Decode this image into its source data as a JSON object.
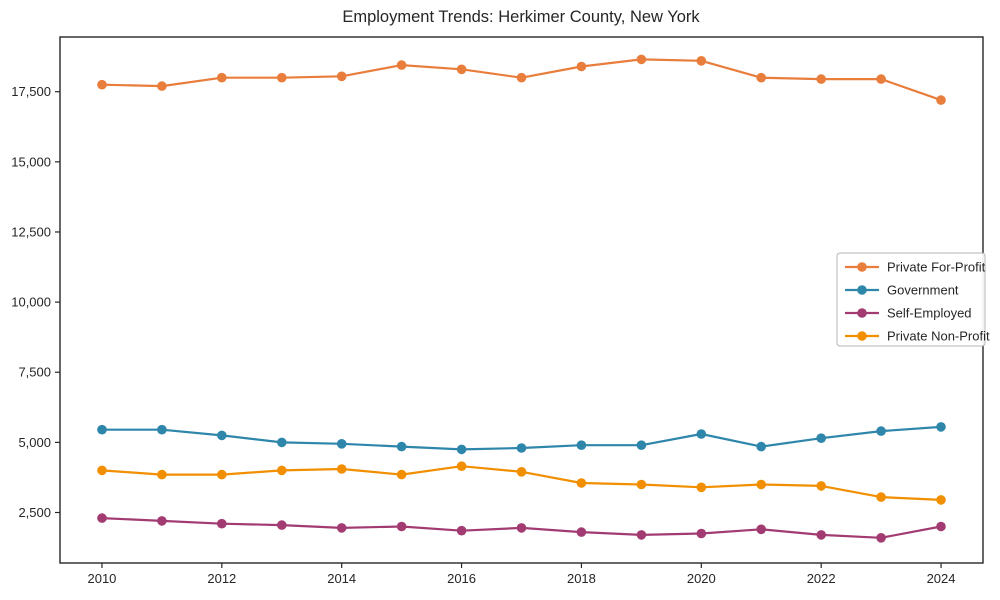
{
  "chart_data": {
    "type": "line",
    "title": "Employment Trends: Herkimer County, New York",
    "xlabel": "",
    "ylabel": "",
    "x": [
      2010,
      2011,
      2012,
      2013,
      2014,
      2015,
      2016,
      2017,
      2018,
      2019,
      2020,
      2021,
      2022,
      2023,
      2024
    ],
    "series": [
      {
        "name": "Private For-Profit",
        "color": "#E87D3C",
        "values": [
          17750,
          17700,
          18000,
          18000,
          18050,
          18450,
          18300,
          18000,
          18400,
          18650,
          18600,
          18000,
          17950,
          17950,
          17200
        ]
      },
      {
        "name": "Government",
        "color": "#2E86AB",
        "values": [
          5450,
          5450,
          5250,
          5000,
          4950,
          4850,
          4750,
          4800,
          4900,
          4900,
          5300,
          4850,
          5150,
          5400,
          5550
        ]
      },
      {
        "name": "Self-Employed",
        "color": "#A23B72",
        "values": [
          2300,
          2200,
          2100,
          2050,
          1950,
          2000,
          1850,
          1950,
          1800,
          1700,
          1750,
          1900,
          1700,
          1600,
          2000
        ]
      },
      {
        "name": "Private Non-Profit",
        "color": "#F18F01",
        "values": [
          4000,
          3850,
          3850,
          4000,
          4050,
          3850,
          4150,
          3950,
          3550,
          3500,
          3400,
          3500,
          3450,
          3050,
          2950
        ]
      }
    ],
    "xlim": [
      2009.3,
      2024.7
    ],
    "ylim": [
      700,
      19450
    ],
    "x_ticks": [
      2010,
      2012,
      2014,
      2016,
      2018,
      2020,
      2022,
      2024
    ],
    "x_tick_labels": [
      "2010",
      "2012",
      "2014",
      "2016",
      "2018",
      "2020",
      "2022",
      "2024"
    ],
    "y_ticks": [
      2500,
      5000,
      7500,
      10000,
      12500,
      15000,
      17500
    ],
    "y_tick_labels": [
      "2,500",
      "5,000",
      "7,500",
      "10,000",
      "12,500",
      "15,000",
      "17,500"
    ],
    "grid": false,
    "legend_position": "center right",
    "marker": "circle"
  }
}
